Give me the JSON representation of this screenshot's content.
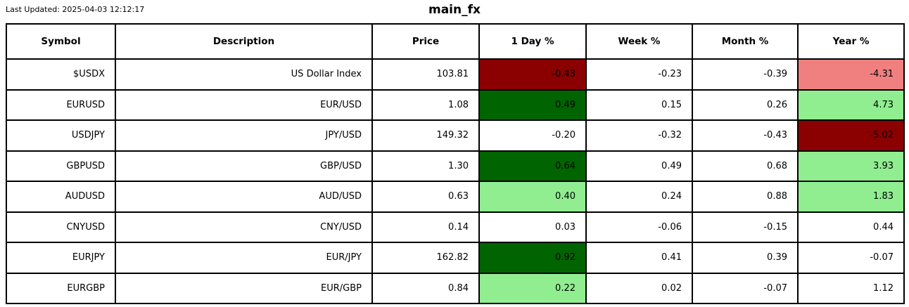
{
  "header": {
    "last_updated": "Last Updated: 2025-04-03 12:12:17",
    "title": "main_fx"
  },
  "colors": {
    "darkred": "#8b0000",
    "lightcoral": "#f08080",
    "darkgreen": "#006400",
    "lightgreen": "#90ee90",
    "border": "#000000",
    "background": "#ffffff",
    "text": "#000000"
  },
  "chart_data": {
    "type": "table",
    "title": "main_fx",
    "columns": [
      "Symbol",
      "Description",
      "Price",
      "1 Day %",
      "Week %",
      "Month %",
      "Year %"
    ],
    "rows": [
      {
        "symbol": "$USDX",
        "description": "US Dollar Index",
        "price": "103.81",
        "day": "-0.43",
        "week": "-0.23",
        "month": "-0.39",
        "year": "-4.31",
        "day_bg": "darkred",
        "year_bg": "lightcoral"
      },
      {
        "symbol": "EURUSD",
        "description": "EUR/USD",
        "price": "1.08",
        "day": "0.49",
        "week": "0.15",
        "month": "0.26",
        "year": "4.73",
        "day_bg": "darkgreen",
        "year_bg": "lightgreen"
      },
      {
        "symbol": "USDJPY",
        "description": "JPY/USD",
        "price": "149.32",
        "day": "-0.20",
        "week": "-0.32",
        "month": "-0.43",
        "year": "-5.02",
        "day_bg": null,
        "year_bg": "darkred"
      },
      {
        "symbol": "GBPUSD",
        "description": "GBP/USD",
        "price": "1.30",
        "day": "0.64",
        "week": "0.49",
        "month": "0.68",
        "year": "3.93",
        "day_bg": "darkgreen",
        "year_bg": "lightgreen"
      },
      {
        "symbol": "AUDUSD",
        "description": "AUD/USD",
        "price": "0.63",
        "day": "0.40",
        "week": "0.24",
        "month": "0.88",
        "year": "1.83",
        "day_bg": "lightgreen",
        "year_bg": "lightgreen"
      },
      {
        "symbol": "CNYUSD",
        "description": "CNY/USD",
        "price": "0.14",
        "day": "0.03",
        "week": "-0.06",
        "month": "-0.15",
        "year": "0.44",
        "day_bg": null,
        "year_bg": null
      },
      {
        "symbol": "EURJPY",
        "description": "EUR/JPY",
        "price": "162.82",
        "day": "0.92",
        "week": "0.41",
        "month": "0.39",
        "year": "-0.07",
        "day_bg": "darkgreen",
        "year_bg": null
      },
      {
        "symbol": "EURGBP",
        "description": "EUR/GBP",
        "price": "0.84",
        "day": "0.22",
        "week": "0.02",
        "month": "-0.07",
        "year": "1.12",
        "day_bg": "lightgreen",
        "year_bg": null
      }
    ]
  }
}
